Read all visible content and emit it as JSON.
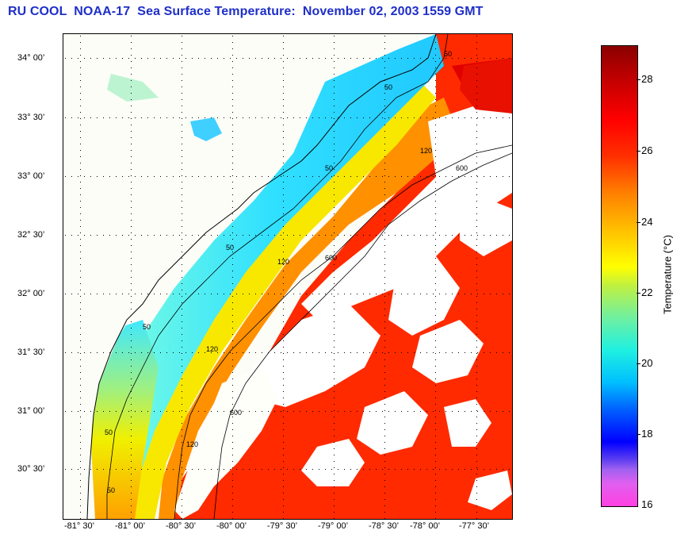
{
  "title": "RU COOL  NOAA-17  Sea Surface Temperature:  November 02, 2003 1559 GMT",
  "map": {
    "lat_labels": [
      "34° 00’",
      "33° 30’",
      "33° 00’",
      "32° 30’",
      "32° 00’",
      "31° 30’",
      "31° 00’",
      "30° 30’"
    ],
    "lon_labels": [
      "-81° 30’",
      "-81° 00’",
      "-80° 30’",
      "-80° 00’",
      "-79° 30’",
      "-79° 00’",
      "-78° 30’",
      "-78° 00’",
      "-77° 30’"
    ],
    "contour_labels": [
      "50",
      "50",
      "50",
      "50",
      "50",
      "50",
      "50",
      "120",
      "120",
      "120",
      "120",
      "600",
      "600",
      "600"
    ],
    "colors": {
      "land": "#fdfdf8",
      "cloud": "#ffffff",
      "nearshore": "#80ffff",
      "shelf": "#40e8ff",
      "mid": "#ffe000",
      "outer": "#ff8c00",
      "warm": "#ff2000",
      "hot": "#e00000",
      "contour": "#000000"
    }
  },
  "colorbar": {
    "title": "Temperature (°C)",
    "ticks": [
      "28",
      "26",
      "24",
      "22",
      "20",
      "18",
      "16"
    ],
    "min": 16,
    "max": 29
  }
}
